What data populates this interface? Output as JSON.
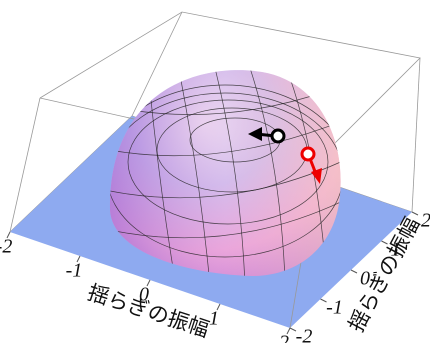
{
  "chart_data": {
    "type": "surface3d",
    "xlabel": "揺らぎの振幅",
    "ylabel": "揺らぎの振幅",
    "xlim": [
      -2,
      2
    ],
    "ylim": [
      -2,
      2
    ],
    "xticks": [
      -2,
      -1,
      0,
      1,
      2
    ],
    "yticks": [
      -2,
      -1,
      0,
      1,
      2
    ],
    "floor_color": "#8eaaf0"
  }
}
